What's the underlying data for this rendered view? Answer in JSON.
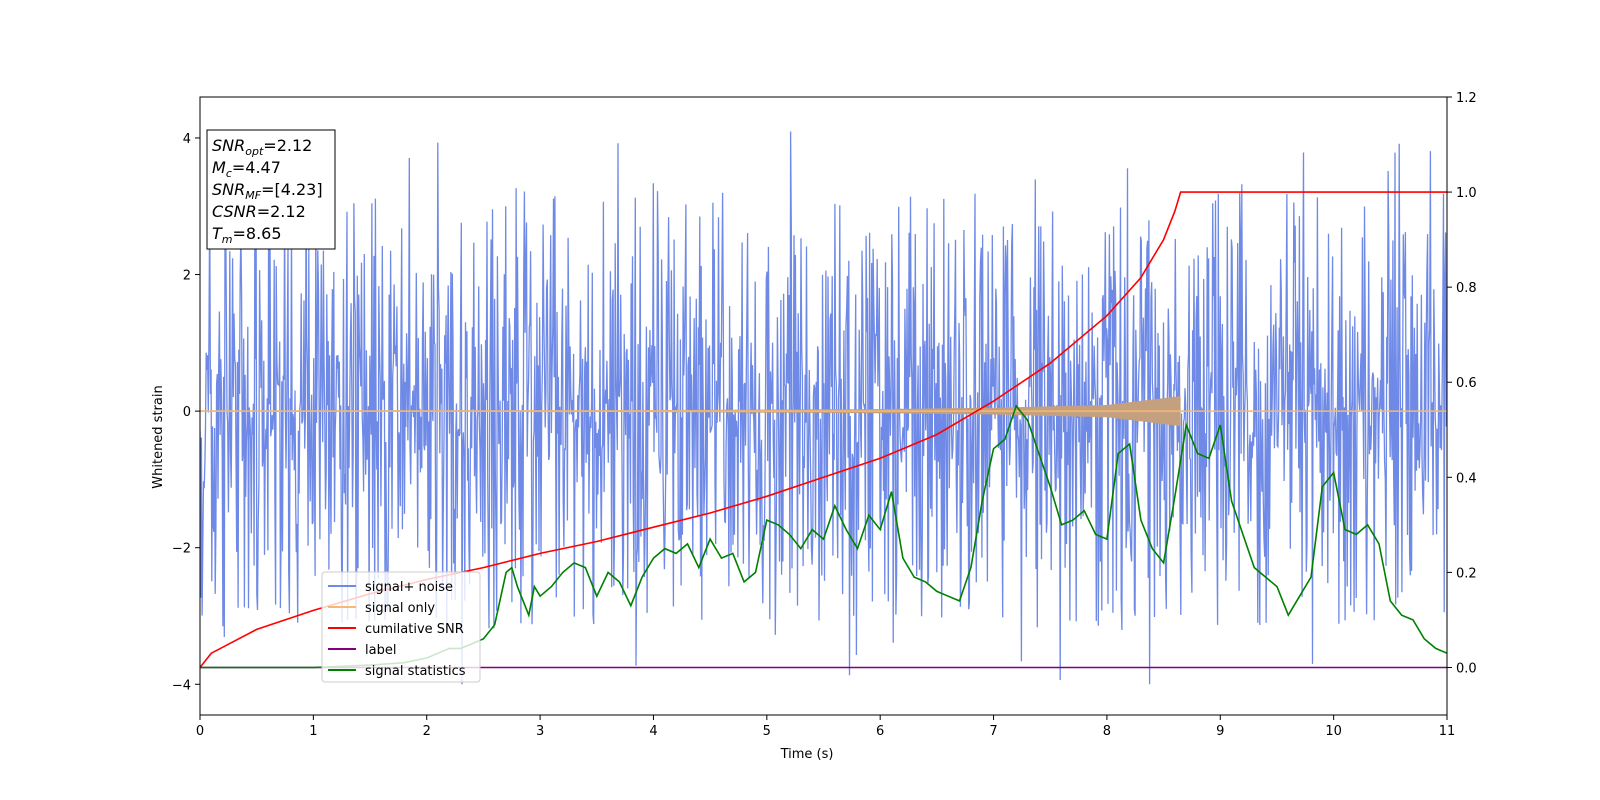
{
  "chart_data": {
    "type": "line",
    "xlabel": "Time (s)",
    "ylabel": "Whitened strain",
    "xlim": [
      0,
      11
    ],
    "ylim": [
      -4.45,
      4.6
    ],
    "y2lim": [
      -0.1,
      1.2
    ],
    "xticks": [
      "0",
      "1",
      "2",
      "3",
      "4",
      "5",
      "6",
      "7",
      "8",
      "9",
      "10",
      "11"
    ],
    "yticks": [
      "−4",
      "−2",
      "0",
      "2",
      "4"
    ],
    "y2ticks": [
      "0.0",
      "0.2",
      "0.4",
      "0.6",
      "0.8",
      "1.0",
      "1.2"
    ],
    "grid": false,
    "legend_position": "lower-left",
    "merger_time": 8.65,
    "series": [
      {
        "name": "signal+ noise",
        "axis": "left",
        "color": "#6f8ae6",
        "description_range": [
          -4.0,
          4.15
        ]
      },
      {
        "name": "signal only",
        "axis": "left",
        "color": "#f5b971",
        "envelope": [
          [
            0,
            0.01
          ],
          [
            4,
            0.015
          ],
          [
            6,
            0.03
          ],
          [
            7,
            0.05
          ],
          [
            8,
            0.09
          ],
          [
            8.65,
            0.22
          ]
        ]
      },
      {
        "name": "cumilative SNR",
        "axis": "right",
        "color": "#ff0000",
        "x": [
          0,
          0.1,
          0.5,
          1,
          1.5,
          2,
          2.5,
          3,
          3.5,
          4,
          4.5,
          5,
          5.5,
          6,
          6.5,
          7,
          7.5,
          8,
          8.3,
          8.5,
          8.6,
          8.65,
          11
        ],
        "y": [
          0.0,
          0.03,
          0.08,
          0.12,
          0.155,
          0.185,
          0.21,
          0.24,
          0.265,
          0.295,
          0.325,
          0.36,
          0.4,
          0.44,
          0.49,
          0.56,
          0.64,
          0.74,
          0.82,
          0.9,
          0.96,
          1.0,
          1.0
        ]
      },
      {
        "name": "label",
        "axis": "right",
        "color": "#800080",
        "x": [
          0,
          11
        ],
        "y": [
          0.0,
          0.0
        ]
      },
      {
        "name": "signal statistics",
        "axis": "right",
        "color": "#008000",
        "x": [
          0,
          0.2,
          0.5,
          1.0,
          1.5,
          1.8,
          2.0,
          2.1,
          2.2,
          2.3,
          2.4,
          2.5,
          2.6,
          2.7,
          2.75,
          2.8,
          2.9,
          2.95,
          3.0,
          3.1,
          3.2,
          3.3,
          3.4,
          3.5,
          3.6,
          3.7,
          3.8,
          3.9,
          4.0,
          4.1,
          4.2,
          4.3,
          4.4,
          4.5,
          4.6,
          4.7,
          4.8,
          4.9,
          5.0,
          5.1,
          5.2,
          5.3,
          5.4,
          5.5,
          5.6,
          5.7,
          5.8,
          5.9,
          6.0,
          6.1,
          6.2,
          6.3,
          6.4,
          6.5,
          6.6,
          6.7,
          6.8,
          6.9,
          7.0,
          7.1,
          7.2,
          7.3,
          7.4,
          7.5,
          7.6,
          7.7,
          7.8,
          7.9,
          8.0,
          8.1,
          8.2,
          8.3,
          8.4,
          8.5,
          8.6,
          8.7,
          8.8,
          8.9,
          9.0,
          9.1,
          9.2,
          9.3,
          9.4,
          9.5,
          9.6,
          9.7,
          9.8,
          9.9,
          10.0,
          10.1,
          10.2,
          10.3,
          10.4,
          10.5,
          10.6,
          10.7,
          10.8,
          10.9,
          11.0
        ],
        "y": [
          0.0,
          0.0,
          0.0,
          0.0,
          0.005,
          0.01,
          0.02,
          0.03,
          0.04,
          0.04,
          0.05,
          0.06,
          0.09,
          0.2,
          0.21,
          0.17,
          0.11,
          0.17,
          0.15,
          0.17,
          0.2,
          0.22,
          0.21,
          0.15,
          0.2,
          0.18,
          0.13,
          0.19,
          0.23,
          0.25,
          0.24,
          0.26,
          0.21,
          0.27,
          0.23,
          0.24,
          0.18,
          0.2,
          0.31,
          0.3,
          0.28,
          0.25,
          0.29,
          0.27,
          0.34,
          0.29,
          0.25,
          0.32,
          0.29,
          0.37,
          0.23,
          0.19,
          0.18,
          0.16,
          0.15,
          0.14,
          0.21,
          0.35,
          0.46,
          0.48,
          0.55,
          0.52,
          0.45,
          0.38,
          0.3,
          0.31,
          0.33,
          0.28,
          0.27,
          0.45,
          0.47,
          0.31,
          0.25,
          0.22,
          0.36,
          0.51,
          0.45,
          0.44,
          0.51,
          0.35,
          0.28,
          0.21,
          0.19,
          0.17,
          0.11,
          0.15,
          0.19,
          0.38,
          0.41,
          0.29,
          0.28,
          0.3,
          0.26,
          0.14,
          0.11,
          0.1,
          0.06,
          0.04,
          0.03
        ]
      }
    ],
    "info_box": {
      "lines": [
        {
          "sym": "SNR",
          "sub": "opt",
          "val": "=2.12"
        },
        {
          "sym": "M",
          "sub": "c",
          "val": "=4.47"
        },
        {
          "sym": "SNR",
          "sub": "MF",
          "val": "=[4.23]"
        },
        {
          "sym": "CSNR",
          "sub": "",
          "val": "=2.12"
        },
        {
          "sym": "T",
          "sub": "m",
          "val": "=8.65"
        }
      ]
    }
  }
}
